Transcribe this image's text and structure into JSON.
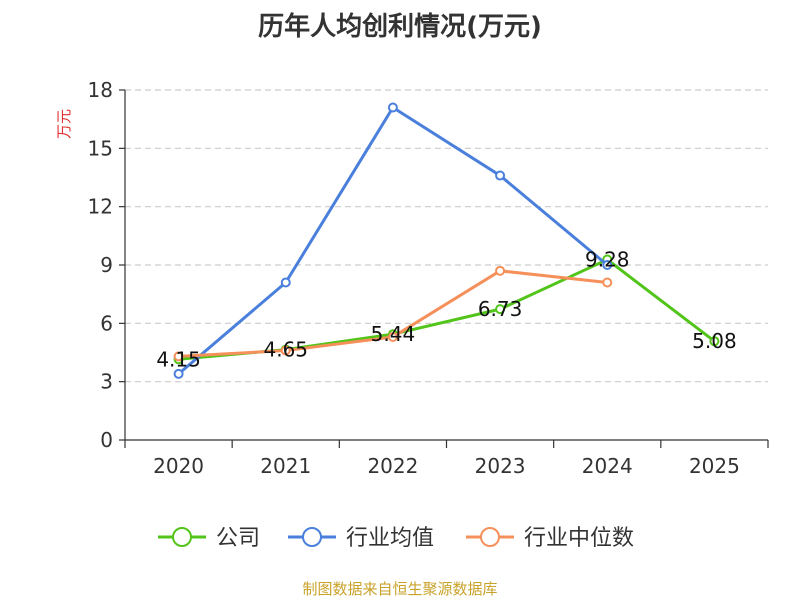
{
  "chart_data": {
    "type": "line",
    "title": "历年人均创利情况(万元)",
    "ylabel": "万元",
    "xlabel": "",
    "categories": [
      "2020",
      "2021",
      "2022",
      "2023",
      "2024",
      "2025"
    ],
    "ylim": [
      0,
      18
    ],
    "yticks": [
      0,
      3,
      6,
      9,
      12,
      15,
      18
    ],
    "grid": true,
    "legend_position": "bottom",
    "series": [
      {
        "name": "公司",
        "color": "#52c41a",
        "values": [
          4.15,
          4.65,
          5.44,
          6.73,
          9.28,
          5.08
        ],
        "data_labels": [
          "4.15",
          "4.65",
          "5.44",
          "6.73",
          "9.28",
          "5.08"
        ]
      },
      {
        "name": "行业均值",
        "color": "#4a7fdc",
        "values": [
          3.4,
          8.1,
          17.1,
          13.6,
          9.0,
          null
        ]
      },
      {
        "name": "行业中位数",
        "color": "#f5905a",
        "values": [
          4.3,
          4.6,
          5.3,
          8.7,
          8.1,
          null
        ]
      }
    ]
  },
  "source_note": "制图数据来自恒生聚源数据库",
  "colors": {
    "axis": "#333333",
    "grid": "#cccccc",
    "ylabel": "#e03030",
    "source": "#c9a22a"
  }
}
